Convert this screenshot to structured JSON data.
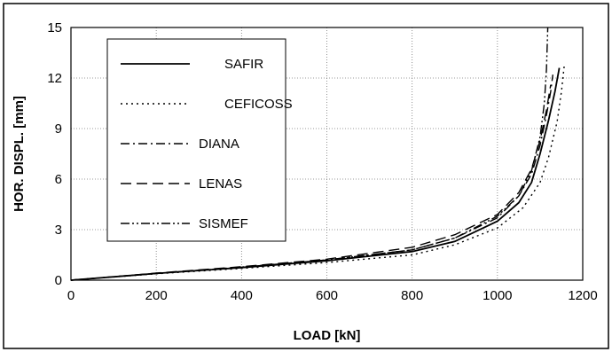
{
  "chart_data": {
    "type": "line",
    "title": "",
    "xlabel": "LOAD [kN]",
    "ylabel": "HOR. DISPL. [mm]",
    "xlim": [
      0,
      1200
    ],
    "ylim": [
      0,
      15
    ],
    "xticks": [
      0,
      200,
      400,
      600,
      800,
      1000,
      1200
    ],
    "yticks": [
      0,
      3,
      6,
      9,
      12,
      15
    ],
    "grid": true,
    "legend_position": "top-left",
    "series": [
      {
        "name": "SAFIR",
        "style": "solid",
        "x": [
          0,
          200,
          400,
          600,
          800,
          900,
          1000,
          1050,
          1080,
          1100,
          1120,
          1135,
          1145
        ],
        "y": [
          0,
          0.4,
          0.75,
          1.15,
          1.7,
          2.3,
          3.5,
          4.6,
          5.8,
          7.5,
          9.5,
          11.2,
          12.6
        ]
      },
      {
        "name": "CEFICOSS",
        "style": "dotted",
        "x": [
          0,
          200,
          400,
          600,
          800,
          900,
          1000,
          1060,
          1100,
          1120,
          1140,
          1150,
          1157
        ],
        "y": [
          0,
          0.38,
          0.7,
          1.05,
          1.5,
          2.1,
          3.1,
          4.3,
          5.8,
          7.3,
          9.4,
          11.2,
          12.8
        ]
      },
      {
        "name": "DIANA",
        "style": "dashdot",
        "x": [
          0,
          200,
          400,
          600,
          800,
          900,
          1000,
          1050,
          1080,
          1100,
          1115,
          1125,
          1130
        ],
        "y": [
          0,
          0.4,
          0.78,
          1.2,
          1.8,
          2.5,
          3.7,
          5.0,
          6.3,
          8.0,
          9.8,
          11.2,
          12.2
        ]
      },
      {
        "name": "LENAS",
        "style": "dashed",
        "x": [
          0,
          200,
          400,
          600,
          800,
          900,
          1000,
          1050,
          1080,
          1100,
          1115,
          1125
        ],
        "y": [
          0,
          0.42,
          0.8,
          1.25,
          1.95,
          2.7,
          3.9,
          5.2,
          6.6,
          8.3,
          10.1,
          11.6
        ]
      },
      {
        "name": "SISMEF",
        "style": "dashdotdot",
        "x": [
          0,
          200,
          400,
          600,
          800,
          900,
          1000,
          1050,
          1080,
          1100,
          1110,
          1115,
          1118
        ],
        "y": [
          0,
          0.4,
          0.77,
          1.2,
          1.8,
          2.5,
          3.8,
          5.0,
          6.5,
          8.5,
          10.5,
          12.5,
          15
        ]
      }
    ]
  }
}
